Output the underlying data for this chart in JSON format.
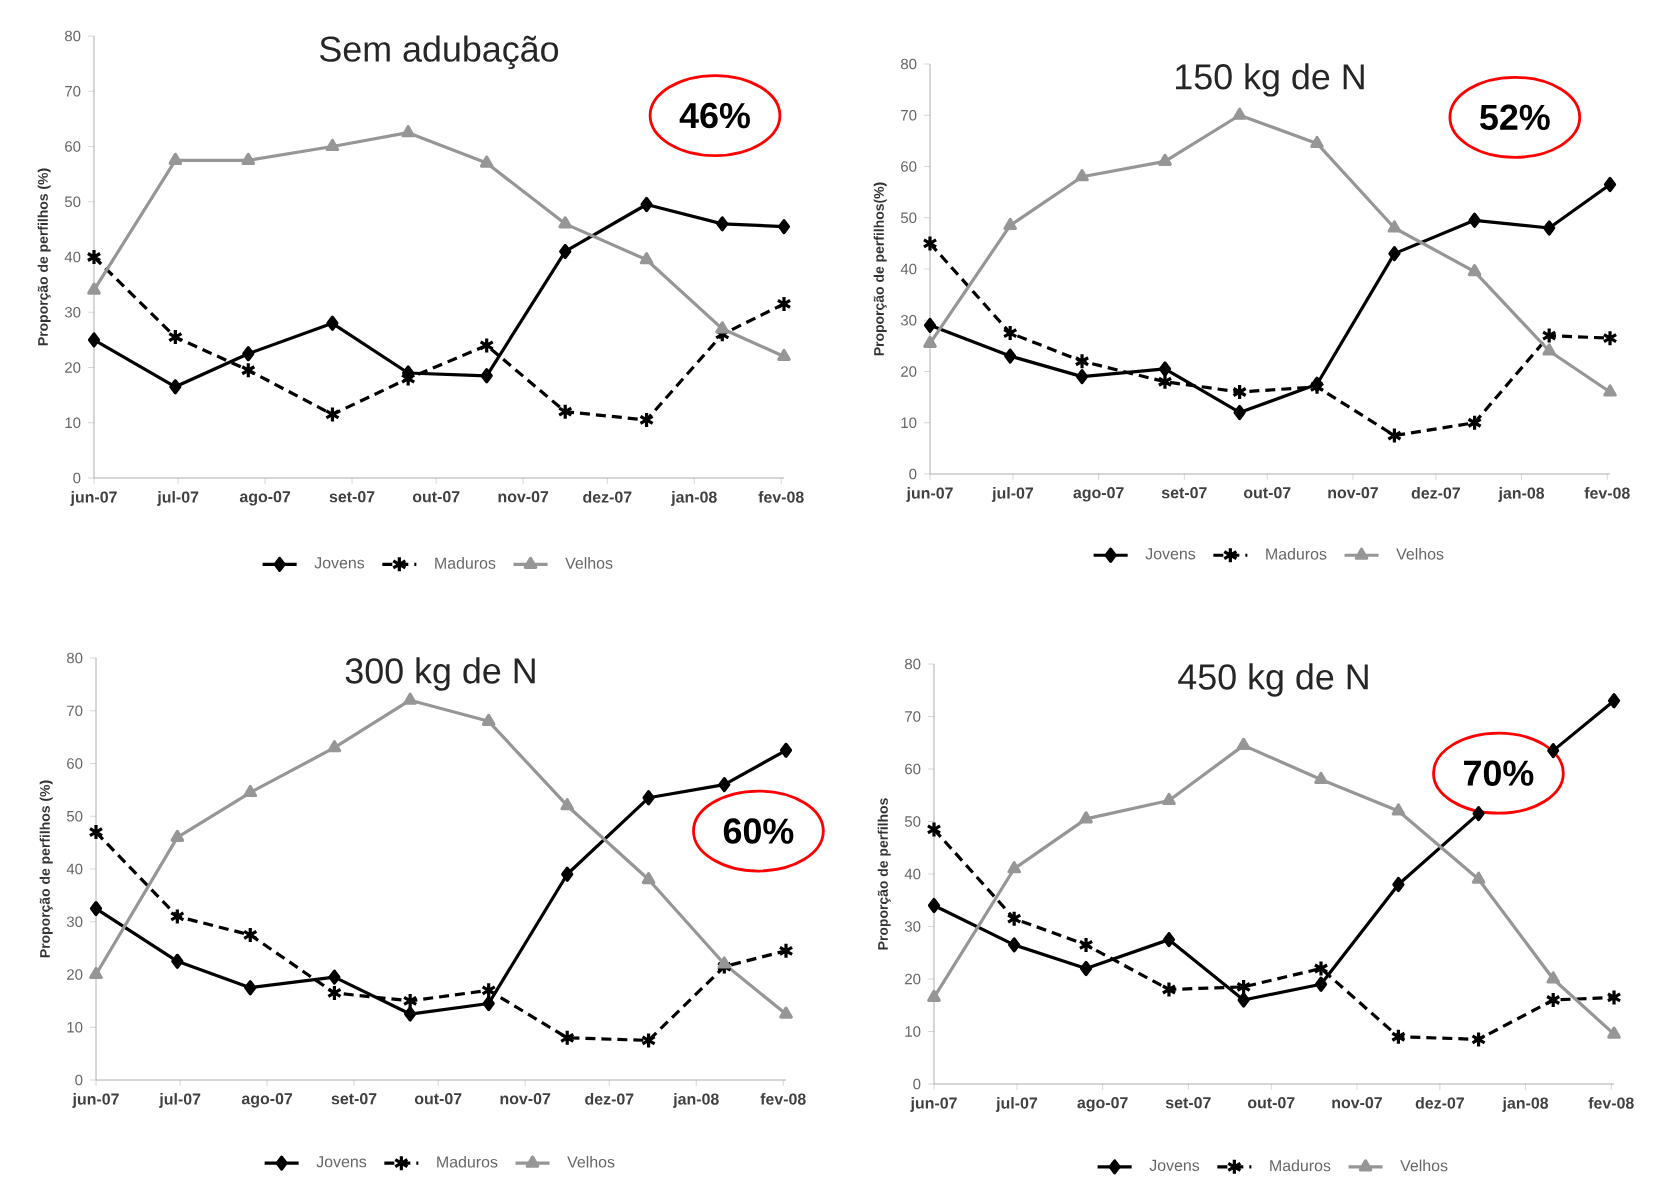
{
  "chart_data": [
    {
      "type": "line",
      "title": "Sem adubação",
      "ylabel": "Proporção de perfilhos (%)",
      "annotations": [
        "46%"
      ],
      "legend": "bottom",
      "x": [
        "2007-06-01",
        "2007-06-30",
        "2007-07-26",
        "2007-08-25",
        "2007-09-21",
        "2007-10-19",
        "2007-11-16",
        "2007-12-15",
        "2008-01-11",
        "2008-02-02"
      ],
      "xlim": [
        "2007-06-01",
        "2008-02-02"
      ],
      "xticks": [
        {
          "value": "2007-06-01",
          "label": "jun-07"
        },
        {
          "value": "2007-07-01",
          "label": "jul-07"
        },
        {
          "value": "2007-08-01",
          "label": "ago-07"
        },
        {
          "value": "2007-09-01",
          "label": "set-07"
        },
        {
          "value": "2007-10-01",
          "label": "out-07"
        },
        {
          "value": "2007-11-01",
          "label": "nov-07"
        },
        {
          "value": "2007-12-01",
          "label": "dez-07"
        },
        {
          "value": "2008-01-01",
          "label": "jan-08"
        },
        {
          "value": "2008-02-01",
          "label": "fev-08"
        }
      ],
      "ylim": [
        0,
        80
      ],
      "yticks": [
        0,
        10,
        20,
        30,
        40,
        50,
        60,
        70,
        80
      ],
      "series": [
        {
          "name": "Jovens",
          "color": "#000000",
          "marker": "diamond",
          "line_style": "solid",
          "values": [
            25,
            16.5,
            22.5,
            28,
            19,
            18.5,
            41,
            49.5,
            46,
            45.5
          ]
        },
        {
          "name": "Maduros",
          "color": "#000000",
          "marker": "cross",
          "line_style": "dashed",
          "values": [
            40,
            25.5,
            19.5,
            11.5,
            18,
            24,
            12,
            10.5,
            26,
            31.5
          ]
        },
        {
          "name": "Velhos",
          "color": "#969696",
          "marker": "triangle",
          "line_style": "solid",
          "values": [
            34,
            57.5,
            57.5,
            60,
            62.5,
            57,
            46,
            39.5,
            27,
            22
          ]
        }
      ]
    },
    {
      "type": "line",
      "title": "150 kg de N",
      "ylabel": "Proporção de perfilhos(%)",
      "annotations": [
        "52%"
      ],
      "legend": "bottom",
      "x": [
        "2007-06-01",
        "2007-06-30",
        "2007-07-26",
        "2007-08-25",
        "2007-09-21",
        "2007-10-19",
        "2007-11-16",
        "2007-12-15",
        "2008-01-11",
        "2008-02-02"
      ],
      "xlim": [
        "2007-06-01",
        "2008-02-02"
      ],
      "xticks": [
        {
          "value": "2007-06-01",
          "label": "jun-07"
        },
        {
          "value": "2007-07-01",
          "label": "jul-07"
        },
        {
          "value": "2007-08-01",
          "label": "ago-07"
        },
        {
          "value": "2007-09-01",
          "label": "set-07"
        },
        {
          "value": "2007-10-01",
          "label": "out-07"
        },
        {
          "value": "2007-11-01",
          "label": "nov-07"
        },
        {
          "value": "2007-12-01",
          "label": "dez-07"
        },
        {
          "value": "2008-01-01",
          "label": "jan-08"
        },
        {
          "value": "2008-02-01",
          "label": "fev-08"
        }
      ],
      "ylim": [
        0,
        80
      ],
      "yticks": [
        0,
        10,
        20,
        30,
        40,
        50,
        60,
        70,
        80
      ],
      "series": [
        {
          "name": "Jovens",
          "color": "#000000",
          "marker": "diamond",
          "line_style": "solid",
          "values": [
            29,
            23,
            19,
            20.5,
            12,
            17.5,
            43,
            49.5,
            48,
            56.5
          ]
        },
        {
          "name": "Maduros",
          "color": "#000000",
          "marker": "cross",
          "line_style": "dashed",
          "values": [
            45,
            27.5,
            22,
            18,
            16,
            17,
            7.5,
            10,
            27,
            26.5
          ]
        },
        {
          "name": "Velhos",
          "color": "#969696",
          "marker": "triangle",
          "line_style": "solid",
          "values": [
            25.5,
            48.5,
            58,
            61,
            70,
            64.5,
            48,
            39.5,
            24,
            16
          ]
        }
      ]
    },
    {
      "type": "line",
      "title": "300 kg de N",
      "ylabel": "Proporção de perfilhos (%)",
      "annotations": [
        "60%"
      ],
      "legend": "bottom",
      "x": [
        "2007-06-01",
        "2007-06-30",
        "2007-07-26",
        "2007-08-25",
        "2007-09-21",
        "2007-10-19",
        "2007-11-16",
        "2007-12-15",
        "2008-01-11",
        "2008-02-02"
      ],
      "xlim": [
        "2007-06-01",
        "2008-02-02"
      ],
      "xticks": [
        {
          "value": "2007-06-01",
          "label": "jun-07"
        },
        {
          "value": "2007-07-01",
          "label": "jul-07"
        },
        {
          "value": "2007-08-01",
          "label": "ago-07"
        },
        {
          "value": "2007-09-01",
          "label": "set-07"
        },
        {
          "value": "2007-10-01",
          "label": "out-07"
        },
        {
          "value": "2007-11-01",
          "label": "nov-07"
        },
        {
          "value": "2007-12-01",
          "label": "dez-07"
        },
        {
          "value": "2008-01-01",
          "label": "jan-08"
        },
        {
          "value": "2008-02-01",
          "label": "fev-08"
        }
      ],
      "ylim": [
        0,
        80
      ],
      "yticks": [
        0,
        10,
        20,
        30,
        40,
        50,
        60,
        70,
        80
      ],
      "series": [
        {
          "name": "Jovens",
          "color": "#000000",
          "marker": "diamond",
          "line_style": "solid",
          "values": [
            32.5,
            22.5,
            17.5,
            19.5,
            12.5,
            14.5,
            39,
            53.5,
            56,
            62.5
          ]
        },
        {
          "name": "Maduros",
          "color": "#000000",
          "marker": "cross",
          "line_style": "dashed",
          "values": [
            47,
            31,
            27.5,
            16.5,
            15,
            17,
            8,
            7.5,
            21.5,
            24.5
          ]
        },
        {
          "name": "Velhos",
          "color": "#969696",
          "marker": "triangle",
          "line_style": "solid",
          "values": [
            20,
            46,
            54.5,
            63,
            72,
            68,
            52,
            38,
            22,
            12.5
          ]
        }
      ]
    },
    {
      "type": "line",
      "title": "450 kg de N",
      "ylabel": "Proporção de perfilhos",
      "annotations": [
        "70%"
      ],
      "legend": "bottom",
      "x": [
        "2007-06-01",
        "2007-06-30",
        "2007-07-26",
        "2007-08-25",
        "2007-09-21",
        "2007-10-19",
        "2007-11-16",
        "2007-12-15",
        "2008-01-11",
        "2008-02-02"
      ],
      "xlim": [
        "2007-06-01",
        "2008-02-02"
      ],
      "xticks": [
        {
          "value": "2007-06-01",
          "label": "jun-07"
        },
        {
          "value": "2007-07-01",
          "label": "jul-07"
        },
        {
          "value": "2007-08-01",
          "label": "ago-07"
        },
        {
          "value": "2007-09-01",
          "label": "set-07"
        },
        {
          "value": "2007-10-01",
          "label": "out-07"
        },
        {
          "value": "2007-11-01",
          "label": "nov-07"
        },
        {
          "value": "2007-12-01",
          "label": "dez-07"
        },
        {
          "value": "2008-01-01",
          "label": "jan-08"
        },
        {
          "value": "2008-02-01",
          "label": "fev-08"
        }
      ],
      "ylim": [
        0,
        80
      ],
      "yticks": [
        0,
        10,
        20,
        30,
        40,
        50,
        60,
        70,
        80
      ],
      "series": [
        {
          "name": "Jovens",
          "color": "#000000",
          "marker": "diamond",
          "line_style": "solid",
          "values": [
            34,
            26.5,
            22,
            27.5,
            16,
            19,
            38,
            51.5,
            63.5,
            73
          ]
        },
        {
          "name": "Maduros",
          "color": "#000000",
          "marker": "cross",
          "line_style": "dashed",
          "values": [
            48.5,
            31.5,
            26.5,
            18,
            18.5,
            22,
            9,
            8.5,
            16,
            16.5
          ]
        },
        {
          "name": "Velhos",
          "color": "#969696",
          "marker": "triangle",
          "line_style": "solid",
          "values": [
            16.5,
            41,
            50.5,
            54,
            64.5,
            58,
            52,
            39,
            20,
            9.5
          ]
        }
      ]
    }
  ]
}
